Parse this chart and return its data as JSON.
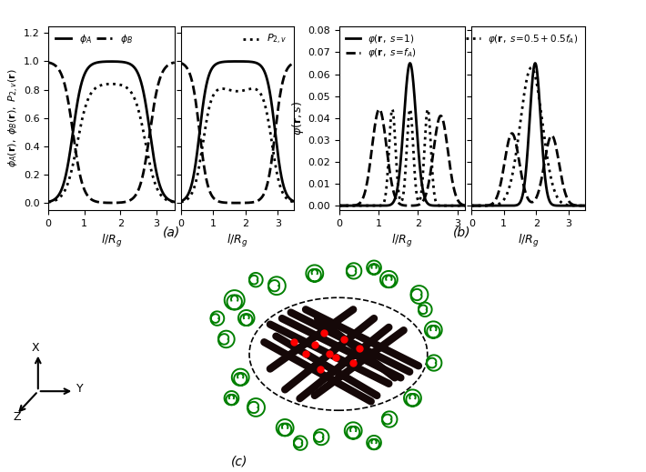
{
  "panel_a_left": {
    "ylabel": "$\\phi_A(\\mathbf{r}),\\ \\phi_B(\\mathbf{r}),\\ P_{2,v}(\\mathbf{r})$",
    "xlabel": "$l/R_g$",
    "xlim": [
      0,
      3.5
    ],
    "ylim": [
      -0.05,
      1.25
    ],
    "yticks": [
      0.0,
      0.2,
      0.4,
      0.6,
      0.8,
      1.0,
      1.2
    ],
    "xticks": [
      0,
      1,
      2,
      3
    ]
  },
  "panel_a_right": {
    "xlabel": "$l/R_g$",
    "xlim": [
      0,
      3.5
    ],
    "ylim": [
      -0.05,
      1.25
    ],
    "yticks": [
      0.0,
      0.2,
      0.4,
      0.6,
      0.8,
      1.0,
      1.2
    ],
    "xticks": [
      0,
      1,
      2,
      3
    ]
  },
  "panel_b_left": {
    "ylabel": "$\\varphi(\\mathbf{r}, s)$",
    "xlabel": "$l/R_g$",
    "xlim": [
      0,
      3.2
    ],
    "ylim": [
      -0.002,
      0.082
    ],
    "yticks": [
      0.0,
      0.01,
      0.02,
      0.03,
      0.04,
      0.05,
      0.06,
      0.07,
      0.08
    ],
    "xticks": [
      0,
      1,
      2,
      3
    ]
  },
  "panel_b_right": {
    "xlabel": "$l/R_g$",
    "xlim": [
      0,
      3.5
    ],
    "ylim": [
      -0.002,
      0.082
    ],
    "yticks": [
      0.0,
      0.01,
      0.02,
      0.03,
      0.04,
      0.05,
      0.06,
      0.07,
      0.08
    ],
    "xticks": [
      0,
      1,
      2,
      3
    ]
  },
  "label_a": "(a)",
  "label_b": "(b)",
  "label_c": "(c)"
}
